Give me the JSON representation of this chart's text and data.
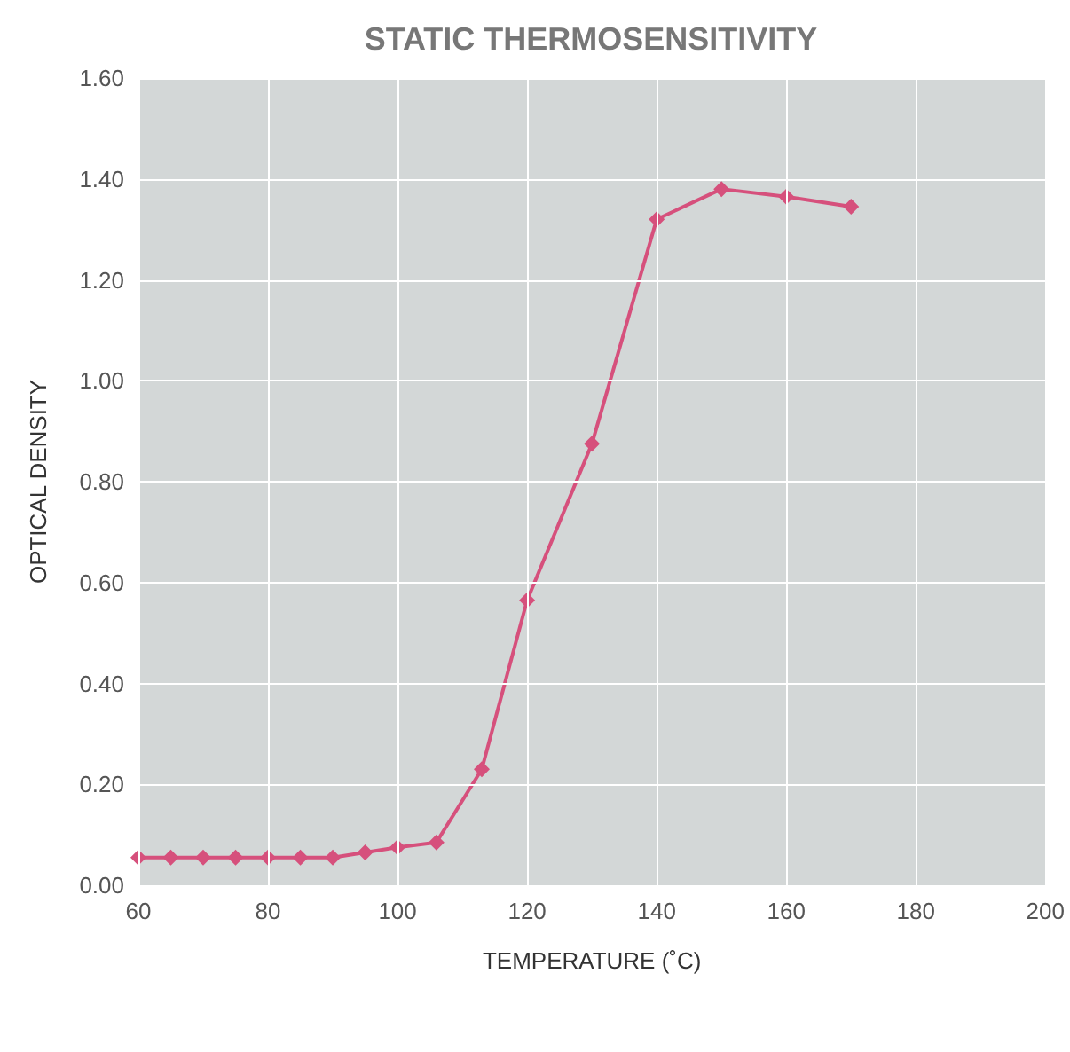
{
  "chart_data": {
    "type": "line",
    "title": "STATIC THERMOSENSITIVITY",
    "xlabel": "TEMPERATURE (˚C)",
    "ylabel": "OPTICAL DENSITY",
    "x": [
      60,
      65,
      70,
      75,
      80,
      85,
      90,
      95,
      100,
      106,
      113,
      120,
      130,
      140,
      150,
      160,
      170
    ],
    "series": [
      {
        "color": "#d6507c",
        "values": [
          0.055,
          0.055,
          0.055,
          0.055,
          0.055,
          0.055,
          0.055,
          0.065,
          0.075,
          0.085,
          0.23,
          0.565,
          0.875,
          1.32,
          1.38,
          1.365,
          1.345
        ]
      }
    ],
    "xlim": [
      60,
      200
    ],
    "xticks": [
      60,
      80,
      100,
      120,
      140,
      160,
      180,
      200
    ],
    "ylim": [
      0,
      1.6
    ],
    "yticks": [
      {
        "value": 0,
        "label": "0.00"
      },
      {
        "value": 0.2,
        "label": "0.20"
      },
      {
        "value": 0.4,
        "label": "0.40"
      },
      {
        "value": 0.6,
        "label": "0.60"
      },
      {
        "value": 0.8,
        "label": "0.80"
      },
      {
        "value": 1,
        "label": "1.00"
      },
      {
        "value": 1.2,
        "label": "1.20"
      },
      {
        "value": 1.4,
        "label": "1.40"
      },
      {
        "value": 1.6,
        "label": "1.60"
      }
    ],
    "grid": true,
    "marker": "diamond",
    "line_style": "solid"
  }
}
